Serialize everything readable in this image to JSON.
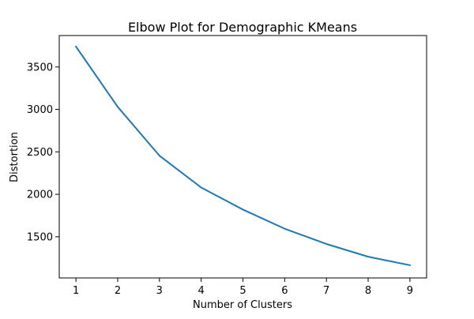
{
  "chart_data": {
    "type": "line",
    "title": "Elbow Plot for Demographic KMeans",
    "xlabel": "Number of Clusters",
    "ylabel": "Distortion",
    "x": [
      1,
      2,
      3,
      4,
      5,
      6,
      7,
      8,
      9
    ],
    "series": [
      {
        "values": [
          3740,
          3030,
          2455,
          2080,
          1820,
          1595,
          1415,
          1265,
          1165
        ],
        "color": "#1f77b4"
      }
    ],
    "xlim": [
      0.6,
      9.4
    ],
    "ylim": [
      1015,
      3870
    ],
    "xticks": [
      "1",
      "2",
      "3",
      "4",
      "5",
      "6",
      "7",
      "8",
      "9"
    ],
    "yticks": [
      "1500",
      "2000",
      "2500",
      "3000",
      "3500"
    ],
    "grid": false,
    "legend": "none"
  }
}
